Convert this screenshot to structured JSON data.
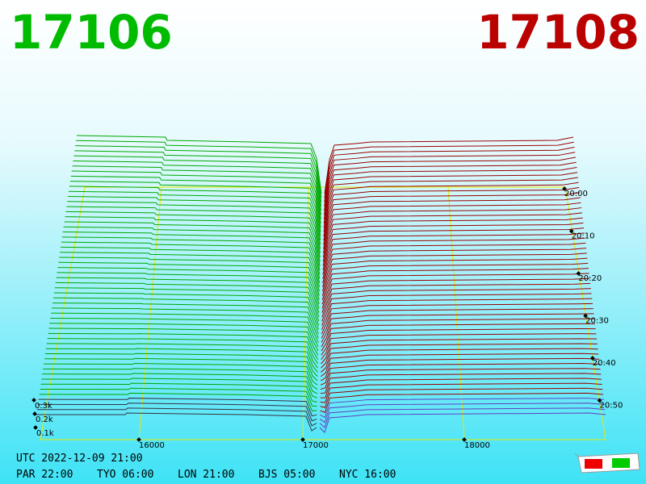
{
  "header": {
    "bid_price": "17106",
    "ask_price": "17108"
  },
  "axis": {
    "price_labels": [
      "16000",
      "17000",
      "18000"
    ],
    "time_labels": [
      "20:00",
      "20:10",
      "20:20",
      "20:30",
      "20:40",
      "20:50"
    ],
    "depth_labels": [
      "0.3k",
      "0.2k",
      "0.1k"
    ]
  },
  "footer": {
    "utc": "UTC 2022-12-09 21:00",
    "zones": [
      "PAR 22:00",
      "TYO 06:00",
      "LON 21:00",
      "BJS 05:00",
      "NYC 16:00"
    ]
  }
}
